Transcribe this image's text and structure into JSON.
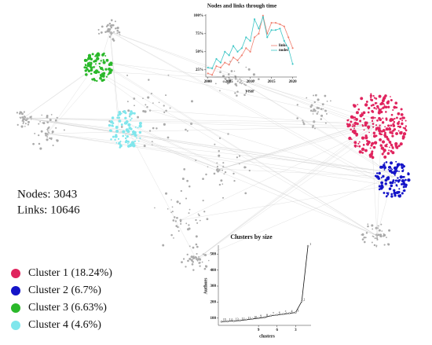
{
  "network": {
    "nodes": "Nodes: 3043",
    "links": "Links: 10646",
    "clusters": [
      {
        "label": "Cluster 1 (18.24%)",
        "color": "#e0245e"
      },
      {
        "label": "Cluster 2 (6.7%)",
        "color": "#1414c8"
      },
      {
        "label": "Cluster 3 (6.63%)",
        "color": "#2ab82a"
      },
      {
        "label": "Cluster 4 (4.6%)",
        "color": "#80e6ec"
      }
    ]
  },
  "chart_data": [
    {
      "type": "line",
      "title": "Nodes and links through time",
      "x_label": "year",
      "x": [
        2000,
        2001,
        2002,
        2003,
        2004,
        2005,
        2006,
        2007,
        2008,
        2009,
        2010,
        2011,
        2012,
        2013,
        2014,
        2015,
        2016,
        2017,
        2018,
        2019,
        2020
      ],
      "series": [
        {
          "name": "links",
          "color": "#f08070",
          "values": [
            20,
            18,
            30,
            28,
            35,
            32,
            42,
            38,
            45,
            55,
            50,
            70,
            75,
            100,
            75,
            90,
            90,
            88,
            85,
            70,
            55
          ]
        },
        {
          "name": "nodes",
          "color": "#3ec6c6",
          "values": [
            28,
            27,
            40,
            35,
            50,
            45,
            58,
            50,
            55,
            70,
            65,
            95,
            82,
            98,
            70,
            80,
            80,
            82,
            65,
            55,
            33
          ]
        }
      ],
      "xlim": [
        1999.5,
        2021
      ],
      "xticks": [
        2000,
        2005,
        2010,
        2015,
        2020
      ],
      "ylim": [
        15,
        102
      ],
      "yticks": [
        {
          "value": 25,
          "label": "25%"
        },
        {
          "value": 50,
          "label": "50%"
        },
        {
          "value": 75,
          "label": "75%"
        },
        {
          "value": 100,
          "label": "100%"
        }
      ],
      "legend": "right"
    },
    {
      "type": "line",
      "title": "Clusters by size",
      "x_label": "clusters",
      "y_label": "Authors",
      "x": [
        15,
        14,
        13,
        12,
        11,
        10,
        9,
        8,
        7,
        6,
        5,
        4,
        3,
        2,
        1
      ],
      "values": [
        78,
        80,
        82,
        85,
        90,
        95,
        100,
        105,
        115,
        120,
        125,
        130,
        135,
        205,
        550
      ],
      "color": "#111",
      "xlim": [
        15.5,
        0.5
      ],
      "xticks": [
        9,
        6,
        3
      ],
      "ylim": [
        55,
        555
      ],
      "yticks": [
        100,
        200,
        300,
        400,
        500
      ]
    }
  ]
}
